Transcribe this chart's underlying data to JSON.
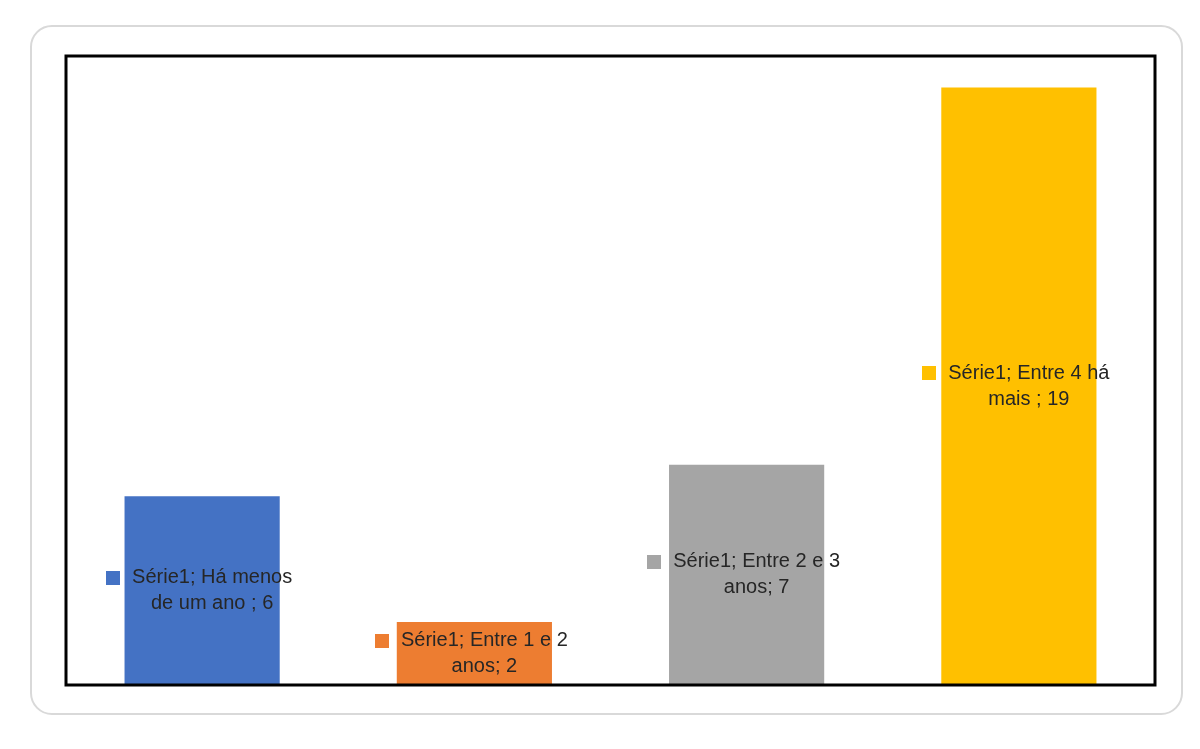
{
  "chart_data": {
    "type": "bar",
    "categories": [
      null,
      null,
      null,
      null
    ],
    "values": [
      6,
      2,
      7,
      19
    ],
    "colors": [
      "#4472c4",
      "#ed7d31",
      "#a5a5a5",
      "#ffc000"
    ],
    "value_labels": [
      "Série1; Há menos de um ano ; 6",
      "Série1; Entre 1 e 2 anos; 2",
      "Série1; Entre 2 e 3 anos; 7",
      "Série1; Entre 4 há mais ; 19"
    ],
    "ylim": [
      0,
      20
    ],
    "tick_labels": false
  }
}
